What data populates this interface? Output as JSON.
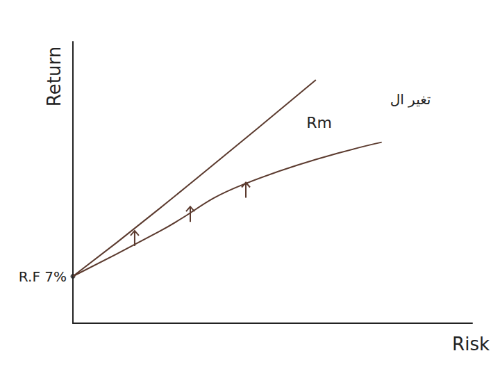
{
  "chart_data": {
    "type": "line",
    "x_label": "Risk",
    "y_label": "Return",
    "xlim": [
      0,
      60
    ],
    "ylim": [
      0,
      42
    ],
    "tick_labels": false,
    "grid": false,
    "series": [
      {
        "name": "Rm",
        "color": "#5b3a2e",
        "x": [
          0,
          13,
          25.6,
          46.4
        ],
        "values": [
          7,
          13.7,
          20.7,
          27
        ]
      },
      {
        "color": "#5b3a2e",
        "x": [
          0,
          13,
          36.5
        ],
        "values": [
          7,
          17.1,
          36.3
        ]
      }
    ],
    "risk_free": {
      "label": "R.F",
      "x": 0,
      "value": 7,
      "value_label": "7%"
    },
    "annotations": [
      {
        "text": "تغير ال",
        "series": "Rm"
      }
    ]
  }
}
